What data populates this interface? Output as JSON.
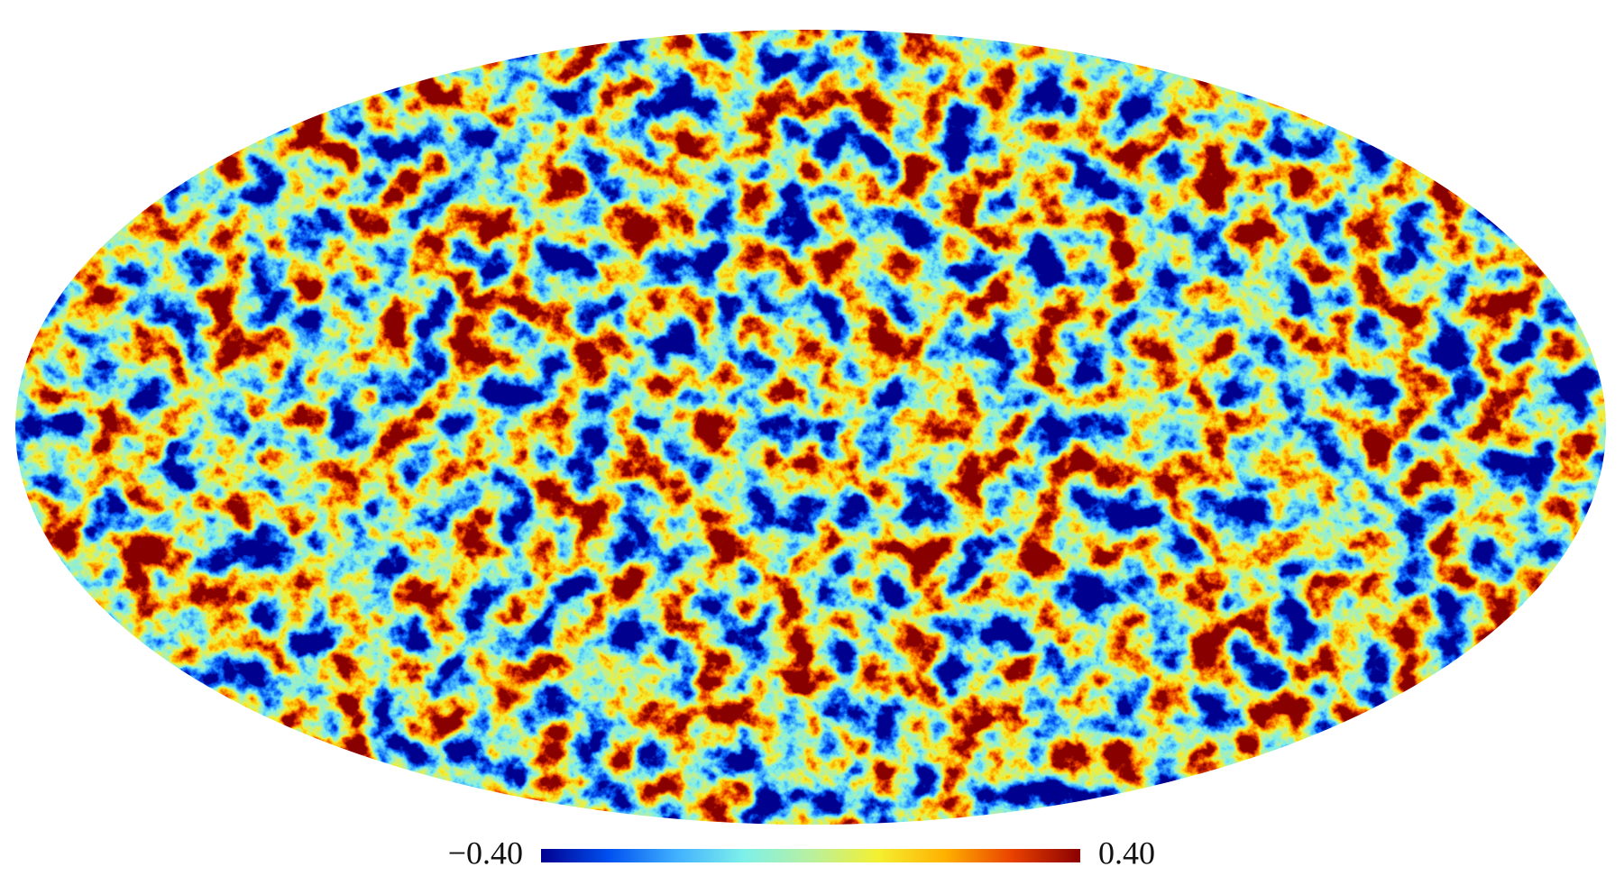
{
  "map": {
    "colorbar": {
      "lim": [
        -0.4,
        0.4
      ],
      "ticks": [
        {
          "value": -0.4,
          "label": "−0.40"
        },
        {
          "value": 0.4,
          "label": "0.40"
        }
      ],
      "colors": [
        "#00008f",
        "#0050f0",
        "#40b0ff",
        "#7ef0ea",
        "#b8f0a0",
        "#f4f030",
        "#ffb000",
        "#e84000",
        "#8a0000"
      ]
    }
  }
}
